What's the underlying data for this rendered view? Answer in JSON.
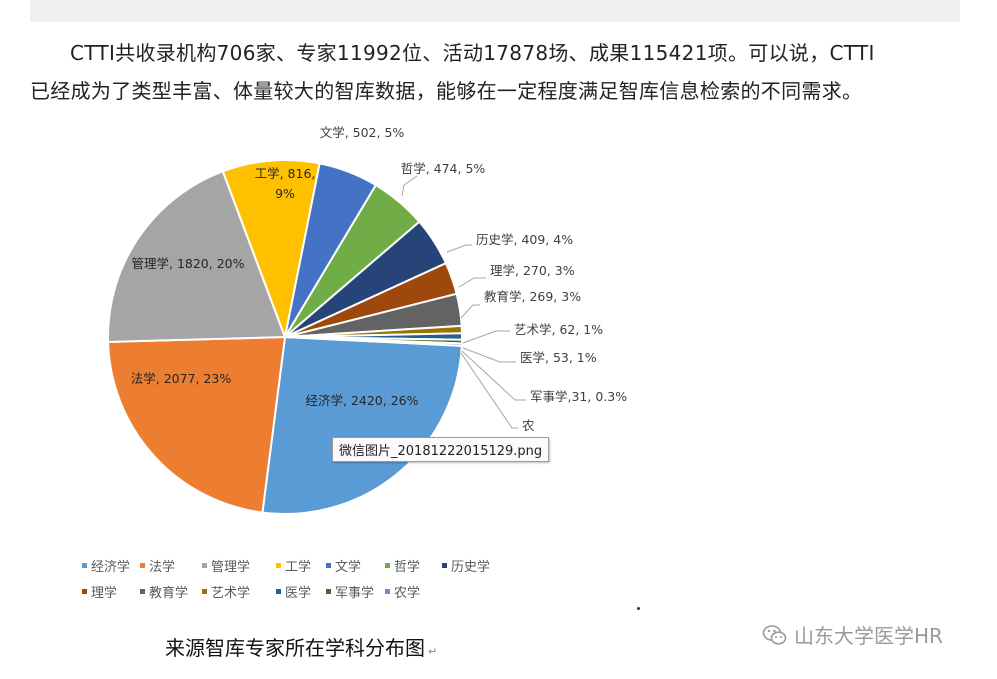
{
  "paragraph": {
    "line1": "CTTI共收录机构706家、专家11992位、活动17878场、成果115421项。可以说，CTTI",
    "line2": "已经成为了类型丰富、体量较大的智库数据，能够在一定程度满足智库信息检索的不同需求。"
  },
  "tooltip": "微信图片_20181222015129.png",
  "caption": "来源智库专家所在学科分布图",
  "caption_mark": "↵",
  "watermark": "山东大学医学HR",
  "watermark_icon": "wechat-icon",
  "chart_data": {
    "type": "pie",
    "title": "",
    "legend_position": "bottom",
    "slices": [
      {
        "name": "经济学",
        "value": 2420,
        "label": "经济学, 2420, 26%",
        "color": "#5B9BD5"
      },
      {
        "name": "法学",
        "value": 2077,
        "label": "法学, 2077, 23%",
        "color": "#ED7D31"
      },
      {
        "name": "管理学",
        "value": 1820,
        "label": "管理学, 1820, 20%",
        "color": "#A5A5A5"
      },
      {
        "name": "工学",
        "value": 816,
        "label": "工学, 816,",
        "label2": "9%",
        "color": "#FFC000"
      },
      {
        "name": "文学",
        "value": 502,
        "label": "文学, 502, 5%",
        "color": "#4472C4"
      },
      {
        "name": "哲学",
        "value": 474,
        "label": "哲学, 474, 5%",
        "color": "#70AD47"
      },
      {
        "name": "历史学",
        "value": 409,
        "label": "历史学, 409, 4%",
        "color": "#264478"
      },
      {
        "name": "理学",
        "value": 270,
        "label": "理学, 270, 3%",
        "color": "#9E480E"
      },
      {
        "name": "教育学",
        "value": 269,
        "label": "教育学, 269, 3%",
        "color": "#636363"
      },
      {
        "name": "艺术学",
        "value": 62,
        "label": "艺术学, 62, 1%",
        "color": "#997300"
      },
      {
        "name": "医学",
        "value": 53,
        "label": "医学, 53, 1%",
        "color": "#255E91"
      },
      {
        "name": "军事学",
        "value": 31,
        "label": "军事学,31, 0.3%",
        "color": "#43682B"
      },
      {
        "name": "农学",
        "value": 20,
        "label": "农",
        "color": "#698ED0"
      }
    ]
  }
}
